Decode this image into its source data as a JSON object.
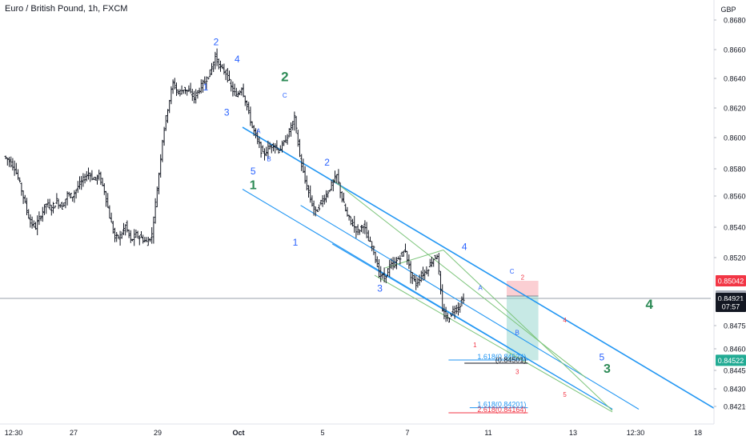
{
  "header": {
    "title": "Euro / British Pound, 1h, FXCM",
    "currency": "GBP"
  },
  "chart_data": {
    "type": "candlestick",
    "symbol": "EURGBP",
    "timeframe": "1h",
    "ylim": [
      0.8411,
      0.8693
    ],
    "y_ticks": [
      {
        "value": 0.868,
        "label": "0.86800"
      },
      {
        "value": 0.866,
        "label": "0.86600"
      },
      {
        "value": 0.864,
        "label": "0.86400"
      },
      {
        "value": 0.862,
        "label": "0.86200"
      },
      {
        "value": 0.86,
        "label": "0.86000"
      },
      {
        "value": 0.858,
        "label": "0.85800"
      },
      {
        "value": 0.856,
        "label": "0.85600"
      },
      {
        "value": 0.854,
        "label": "0.85400"
      },
      {
        "value": 0.852,
        "label": "0.85200"
      },
      {
        "value": 0.8475,
        "label": "0.84750"
      },
      {
        "value": 0.846,
        "label": "0.84600"
      },
      {
        "value": 0.8445,
        "label": "0.84450"
      },
      {
        "value": 0.843,
        "label": "0.84300"
      },
      {
        "value": 0.8421,
        "label": "0.84210"
      }
    ],
    "x_ticks": [
      "12:30",
      "27",
      "29",
      "Oct",
      "5",
      "7",
      "11",
      "13",
      "12:30",
      "18"
    ],
    "price_tags": [
      {
        "label": "0.85042",
        "value": 0.85042,
        "color": "#f23645"
      },
      {
        "label": "0.84939",
        "value": 0.84939,
        "color": "#a9adb8"
      },
      {
        "label": "0.84921",
        "value": 0.84921,
        "color": "#131722"
      },
      {
        "label": "07:57",
        "value": 0.84876,
        "color": "#131722"
      },
      {
        "label": "0.84522",
        "value": 0.84522,
        "color": "#22ab94"
      }
    ],
    "current_price": 0.84921,
    "price_path": [
      [
        0,
        0.8588
      ],
      [
        1,
        0.8585
      ],
      [
        2,
        0.8581
      ],
      [
        3,
        0.8569
      ],
      [
        4,
        0.8555
      ],
      [
        5,
        0.8543
      ],
      [
        6,
        0.854
      ],
      [
        7,
        0.8548
      ],
      [
        8,
        0.8555
      ],
      [
        9,
        0.8552
      ],
      [
        10,
        0.8557
      ],
      [
        11,
        0.8553
      ],
      [
        12,
        0.8561
      ],
      [
        13,
        0.856
      ],
      [
        14,
        0.8567
      ],
      [
        15,
        0.8572
      ],
      [
        16,
        0.8577
      ],
      [
        17,
        0.8572
      ],
      [
        18,
        0.8575
      ],
      [
        19,
        0.8564
      ],
      [
        20,
        0.8547
      ],
      [
        21,
        0.8533
      ],
      [
        22,
        0.8534
      ],
      [
        23,
        0.8541
      ],
      [
        24,
        0.8531
      ],
      [
        25,
        0.8535
      ],
      [
        26,
        0.8533
      ],
      [
        27,
        0.853
      ],
      [
        28,
        0.8535
      ],
      [
        29,
        0.8565
      ],
      [
        30,
        0.8599
      ],
      [
        31,
        0.862
      ],
      [
        32,
        0.8637
      ],
      [
        33,
        0.863
      ],
      [
        34,
        0.8633
      ],
      [
        35,
        0.8631
      ],
      [
        36,
        0.8627
      ],
      [
        37,
        0.8633
      ],
      [
        38,
        0.8638
      ],
      [
        39,
        0.8644
      ],
      [
        40,
        0.8655
      ],
      [
        41,
        0.8647
      ],
      [
        42,
        0.8644
      ],
      [
        43,
        0.8634
      ],
      [
        44,
        0.8628
      ],
      [
        45,
        0.8634
      ],
      [
        46,
        0.8621
      ],
      [
        47,
        0.8607
      ],
      [
        48,
        0.8598
      ],
      [
        49,
        0.8589
      ],
      [
        50,
        0.8593
      ],
      [
        51,
        0.8596
      ],
      [
        52,
        0.8592
      ],
      [
        53,
        0.8596
      ],
      [
        54,
        0.8604
      ],
      [
        55,
        0.8613
      ],
      [
        56,
        0.8588
      ],
      [
        57,
        0.8571
      ],
      [
        58,
        0.8558
      ],
      [
        59,
        0.8549
      ],
      [
        60,
        0.8556
      ],
      [
        61,
        0.8561
      ],
      [
        62,
        0.8568
      ],
      [
        63,
        0.8575
      ],
      [
        64,
        0.8558
      ],
      [
        65,
        0.8547
      ],
      [
        66,
        0.8542
      ],
      [
        67,
        0.8537
      ],
      [
        68,
        0.8542
      ],
      [
        69,
        0.8531
      ],
      [
        70,
        0.8525
      ],
      [
        71,
        0.8509
      ],
      [
        72,
        0.8506
      ],
      [
        73,
        0.8514
      ],
      [
        74,
        0.8516
      ],
      [
        75,
        0.8521
      ],
      [
        76,
        0.8525
      ],
      [
        77,
        0.8508
      ],
      [
        78,
        0.8502
      ],
      [
        79,
        0.8508
      ],
      [
        80,
        0.8511
      ],
      [
        81,
        0.8518
      ],
      [
        82,
        0.8522
      ],
      [
        83,
        0.8484
      ],
      [
        84,
        0.8479
      ],
      [
        85,
        0.8485
      ],
      [
        86,
        0.8487
      ],
      [
        87,
        0.8493
      ]
    ],
    "channels": [
      {
        "name": "channel-upper",
        "color": "#2196f3",
        "width": 1.6,
        "x0": 45,
        "y0": 0.8607,
        "x1": 135,
        "y1": 0.8418
      },
      {
        "name": "channel-mid-1",
        "color": "#2196f3",
        "width": 1.1,
        "x0": 45,
        "y0": 0.8565,
        "x1": 115,
        "y1": 0.8419
      },
      {
        "name": "channel-mid-2",
        "color": "#2196f3",
        "width": 1.1,
        "x0": 56,
        "y0": 0.8554,
        "x1": 120,
        "y1": 0.8419
      },
      {
        "name": "channel-lower",
        "color": "#2196f3",
        "width": 1.1,
        "x0": 62,
        "y0": 0.8529,
        "x1": 115,
        "y1": 0.8419
      },
      {
        "name": "fib-green-1",
        "color": "#7cc47a",
        "width": 1,
        "x0": 62,
        "y0": 0.8572,
        "x1": 110,
        "y1": 0.8439
      },
      {
        "name": "fib-green-2",
        "color": "#7cc47a",
        "width": 1,
        "x0": 70,
        "y0": 0.8508,
        "x1": 115,
        "y1": 0.8417
      },
      {
        "name": "fib-green-3",
        "color": "#7cc47a",
        "width": 1,
        "x0": 72,
        "y0": 0.8513,
        "x1": 83,
        "y1": 0.8525
      },
      {
        "name": "fib-green-4",
        "color": "#7cc47a",
        "width": 1,
        "x0": 83,
        "y0": 0.8525,
        "x1": 115,
        "y1": 0.8418
      }
    ],
    "fib_levels": [
      {
        "label": "1.618(0.84524)",
        "value": 0.84524,
        "x0": 84,
        "x1": 99,
        "color": "#2196f3"
      },
      {
        "label": "(0.84501)",
        "value": 0.84501,
        "x0": 87,
        "x1": 99,
        "color": "#131722"
      },
      {
        "label": "1.618(0.84201)",
        "value": 0.84201,
        "x0": 88,
        "x1": 99,
        "color": "#2196f3"
      },
      {
        "label": "2.618(0.84164)",
        "value": 0.84164,
        "x0": 84,
        "x1": 99,
        "color": "#f23645"
      }
    ],
    "position_box": {
      "x0": 95,
      "x1": 101,
      "entry": 0.84939,
      "stop": 0.85042,
      "target": 0.84522
    },
    "wave_labels": [
      {
        "text": "2",
        "x": 40,
        "y": 0.8663,
        "color": "#2962ff",
        "size": 12
      },
      {
        "text": "4",
        "x": 44,
        "y": 0.8651,
        "color": "#2962ff",
        "size": 12
      },
      {
        "text": "1",
        "x": 38,
        "y": 0.8632,
        "color": "#2962ff",
        "size": 12
      },
      {
        "text": "3",
        "x": 42,
        "y": 0.8615,
        "color": "#2962ff",
        "size": 12
      },
      {
        "text": "2",
        "x": 53,
        "y": 0.8638,
        "color": "#2e8b57",
        "size": 17
      },
      {
        "text": "C",
        "x": 53,
        "y": 0.8627,
        "color": "#2962ff",
        "size": 8
      },
      {
        "text": "A",
        "x": 48,
        "y": 0.8603,
        "color": "#2962ff",
        "size": 8
      },
      {
        "text": "B",
        "x": 50,
        "y": 0.8585,
        "color": "#2962ff",
        "size": 8
      },
      {
        "text": "5",
        "x": 47,
        "y": 0.8576,
        "color": "#2962ff",
        "size": 12
      },
      {
        "text": "1",
        "x": 47,
        "y": 0.8565,
        "color": "#2e8b57",
        "size": 16
      },
      {
        "text": "2",
        "x": 61,
        "y": 0.8582,
        "color": "#2962ff",
        "size": 12
      },
      {
        "text": "1",
        "x": 55,
        "y": 0.8528,
        "color": "#2962ff",
        "size": 12
      },
      {
        "text": "4",
        "x": 87,
        "y": 0.8525,
        "color": "#2962ff",
        "size": 12
      },
      {
        "text": "3",
        "x": 71,
        "y": 0.8497,
        "color": "#2962ff",
        "size": 12
      },
      {
        "text": "A",
        "x": 90,
        "y": 0.8498,
        "color": "#2962ff",
        "size": 8
      },
      {
        "text": "C",
        "x": 96,
        "y": 0.8509,
        "color": "#2962ff",
        "size": 8
      },
      {
        "text": "2",
        "x": 98,
        "y": 0.8505,
        "color": "#f23645",
        "size": 8
      },
      {
        "text": "B",
        "x": 97,
        "y": 0.8469,
        "color": "#2962ff",
        "size": 8
      },
      {
        "text": "1",
        "x": 89,
        "y": 0.8461,
        "color": "#f23645",
        "size": 8
      },
      {
        "text": "4",
        "x": 106,
        "y": 0.8477,
        "color": "#f23645",
        "size": 8
      },
      {
        "text": "3",
        "x": 97,
        "y": 0.8442,
        "color": "#f23645",
        "size": 8
      },
      {
        "text": "5",
        "x": 106,
        "y": 0.8426,
        "color": "#f23645",
        "size": 8
      },
      {
        "text": "4",
        "x": 122,
        "y": 0.8486,
        "color": "#2e8b57",
        "size": 17
      },
      {
        "text": "5",
        "x": 113,
        "y": 0.8452,
        "color": "#2962ff",
        "size": 12
      },
      {
        "text": "3",
        "x": 114,
        "y": 0.8443,
        "color": "#2e8b57",
        "size": 16
      }
    ]
  }
}
